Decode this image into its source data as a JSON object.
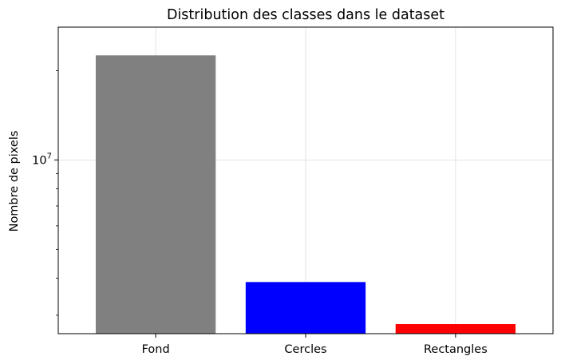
{
  "chart_data": {
    "type": "bar",
    "title": "Distribution des classes dans le dataset",
    "xlabel": "",
    "ylabel": "Nombre de pixels",
    "yscale": "log",
    "ylim": [
      2600000,
      28000000
    ],
    "categories": [
      "Fond",
      "Cercles",
      "Rectangles"
    ],
    "values": [
      22500000,
      3880000,
      2800000
    ],
    "colors": [
      "#808080",
      "#0000ff",
      "#ff0000"
    ],
    "ytick_labels": [
      {
        "base": "10",
        "exp": "7",
        "value": 10000000
      }
    ],
    "grid": true
  }
}
